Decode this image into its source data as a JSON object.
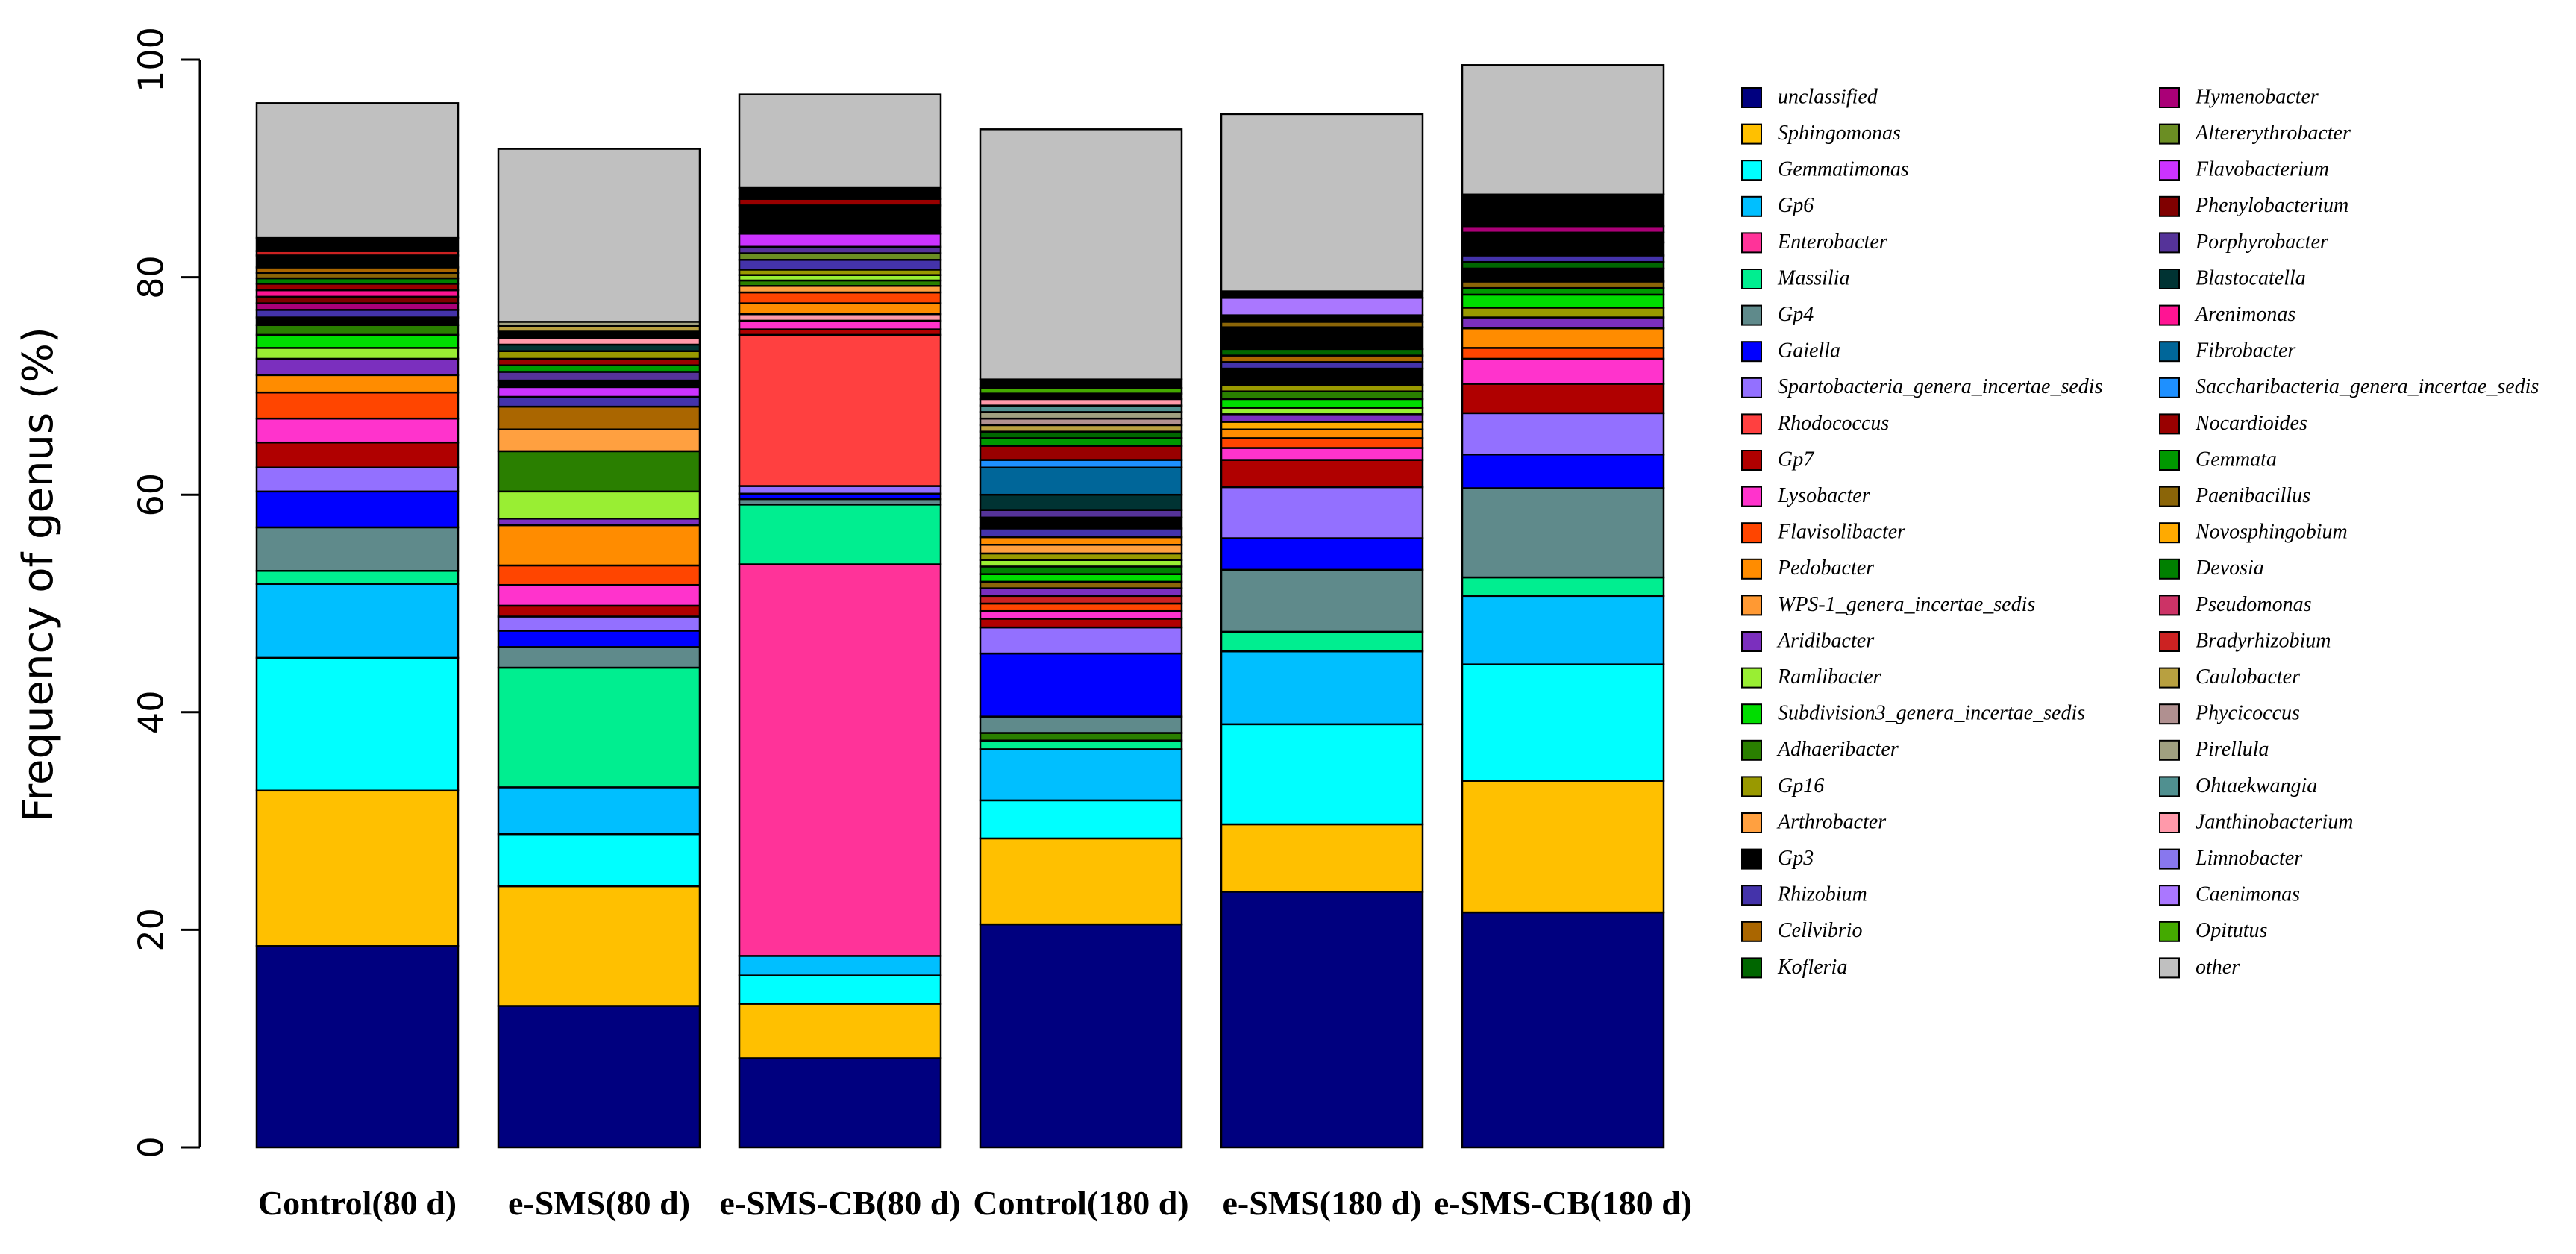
{
  "chart_data": {
    "type": "bar",
    "stacked": true,
    "title": "",
    "xlabel": "",
    "ylabel": "Frequency of genus (%)",
    "ylim": [
      0,
      100
    ],
    "yticks": [
      "0",
      "20",
      "40",
      "60",
      "80",
      "100"
    ],
    "categories": [
      "Control(80 d)",
      "e-SMS(80 d)",
      "e-SMS-CB(80 d)",
      "Control(180 d)",
      "e-SMS(180 d)",
      "e-SMS-CB(180 d)"
    ],
    "legend": [
      {
        "name": "unclassified",
        "color": "#00007f"
      },
      {
        "name": "Sphingomonas",
        "color": "#ffc000"
      },
      {
        "name": "Gemmatimonas",
        "color": "#00ffff"
      },
      {
        "name": "Gp6",
        "color": "#00bfff"
      },
      {
        "name": "Enterobacter",
        "color": "#ff3399"
      },
      {
        "name": "Massilia",
        "color": "#00ee90"
      },
      {
        "name": "Gp4",
        "color": "#5f8a8b"
      },
      {
        "name": "Gaiella",
        "color": "#0000ff"
      },
      {
        "name": "Spartobacteria_genera_incertae_sedis",
        "color": "#9370ff"
      },
      {
        "name": "Rhodococcus",
        "color": "#ff4040"
      },
      {
        "name": "Gp7",
        "color": "#b00000"
      },
      {
        "name": "Lysobacter",
        "color": "#ff33cc"
      },
      {
        "name": "Flavisolibacter",
        "color": "#ff4500"
      },
      {
        "name": "Pedobacter",
        "color": "#ff8c00"
      },
      {
        "name": "WPS-1_genera_incertae_sedis",
        "color": "#ff9933"
      },
      {
        "name": "Aridibacter",
        "color": "#7b2fbe"
      },
      {
        "name": "Ramlibacter",
        "color": "#99ee33"
      },
      {
        "name": "Subdivision3_genera_incertae_sedis",
        "color": "#00dd00"
      },
      {
        "name": "Adhaeribacter",
        "color": "#2a7f00"
      },
      {
        "name": "Gp16",
        "color": "#999900"
      },
      {
        "name": "Arthrobacter",
        "color": "#ffa040"
      },
      {
        "name": "Gp3",
        "color": "#000000"
      },
      {
        "name": "Rhizobium",
        "color": "#4433aa"
      },
      {
        "name": "Cellvibrio",
        "color": "#aa6600"
      },
      {
        "name": "Kofleria",
        "color": "#006600"
      },
      {
        "name": "Hymenobacter",
        "color": "#aa0077"
      },
      {
        "name": "Altererythrobacter",
        "color": "#6b8e23"
      },
      {
        "name": "Flavobacterium",
        "color": "#cc33ff"
      },
      {
        "name": "Phenylobacterium",
        "color": "#800000"
      },
      {
        "name": "Porphyrobacter",
        "color": "#553399"
      },
      {
        "name": "Blastocatella",
        "color": "#003333"
      },
      {
        "name": "Arenimonas",
        "color": "#ff1493"
      },
      {
        "name": "Fibrobacter",
        "color": "#006699"
      },
      {
        "name": "Saccharibacteria_genera_incertae_sedis",
        "color": "#1e90ff"
      },
      {
        "name": "Nocardioides",
        "color": "#990000"
      },
      {
        "name": "Gemmata",
        "color": "#009900"
      },
      {
        "name": "Paenibacillus",
        "color": "#8b6508"
      },
      {
        "name": "Novosphingobium",
        "color": "#ffaa00"
      },
      {
        "name": "Devosia",
        "color": "#008000"
      },
      {
        "name": "Pseudomonas",
        "color": "#cc3366"
      },
      {
        "name": "Bradyrhizobium",
        "color": "#cc2222"
      },
      {
        "name": "Caulobacter",
        "color": "#b8a040"
      },
      {
        "name": "Phycicoccus",
        "color": "#b09090"
      },
      {
        "name": "Pirellula",
        "color": "#a0a080"
      },
      {
        "name": "Ohtaekwangia",
        "color": "#509090"
      },
      {
        "name": "Janthinobacterium",
        "color": "#ff99aa"
      },
      {
        "name": "Limnobacter",
        "color": "#8877ee"
      },
      {
        "name": "Caenimonas",
        "color": "#aa77ff"
      },
      {
        "name": "Opitutus",
        "color": "#44aa00"
      },
      {
        "name": "other",
        "color": "#c0c0c0"
      }
    ],
    "stacks": [
      [
        {
          "name": "unclassified",
          "value": 18.5
        },
        {
          "name": "Sphingomonas",
          "value": 14.3
        },
        {
          "name": "Gemmatimonas",
          "value": 12.2
        },
        {
          "name": "Gp6",
          "value": 6.8
        },
        {
          "name": "Massilia",
          "value": 1.2
        },
        {
          "name": "Gp4",
          "value": 4.0
        },
        {
          "name": "Gaiella",
          "value": 3.3
        },
        {
          "name": "Spartobacteria_genera_incertae_sedis",
          "value": 2.2
        },
        {
          "name": "Gp7",
          "value": 2.3
        },
        {
          "name": "Lysobacter",
          "value": 2.2
        },
        {
          "name": "Flavisolibacter",
          "value": 2.4
        },
        {
          "name": "Pedobacter",
          "value": 1.6
        },
        {
          "name": "Aridibacter",
          "value": 1.5
        },
        {
          "name": "Ramlibacter",
          "value": 1.0
        },
        {
          "name": "Subdivision3_genera_incertae_sedis",
          "value": 1.2
        },
        {
          "name": "Adhaeribacter",
          "value": 0.9
        },
        {
          "name": "Gp3",
          "value": 0.7
        },
        {
          "name": "Rhizobium",
          "value": 0.7
        },
        {
          "name": "Hymenobacter",
          "value": 0.6
        },
        {
          "name": "Phenylobacterium",
          "value": 0.6
        },
        {
          "name": "Arenimonas",
          "value": 0.6
        },
        {
          "name": "Nocardioides",
          "value": 0.6
        },
        {
          "name": "Devosia",
          "value": 0.5
        },
        {
          "name": "Paenibacillus",
          "value": 0.5
        },
        {
          "name": "Cellvibrio",
          "value": 0.5
        },
        {
          "name": "Gp3",
          "value": 1.1
        },
        {
          "name": "Bradyrhizobium",
          "value": 0.4
        },
        {
          "name": "Gp3",
          "value": 1.2
        },
        {
          "name": "other",
          "value": 12.4
        }
      ],
      [
        {
          "name": "unclassified",
          "value": 13.0
        },
        {
          "name": "Sphingomonas",
          "value": 11.0
        },
        {
          "name": "Gemmatimonas",
          "value": 4.8
        },
        {
          "name": "Gp6",
          "value": 4.3
        },
        {
          "name": "Massilia",
          "value": 11.0
        },
        {
          "name": "Gp4",
          "value": 1.9
        },
        {
          "name": "Gaiella",
          "value": 1.5
        },
        {
          "name": "Spartobacteria_genera_incertae_sedis",
          "value": 1.3
        },
        {
          "name": "Gp7",
          "value": 1.0
        },
        {
          "name": "Lysobacter",
          "value": 1.9
        },
        {
          "name": "Flavisolibacter",
          "value": 1.8
        },
        {
          "name": "Pedobacter",
          "value": 3.7
        },
        {
          "name": "Aridibacter",
          "value": 0.6
        },
        {
          "name": "Ramlibacter",
          "value": 2.5
        },
        {
          "name": "Adhaeribacter",
          "value": 3.7
        },
        {
          "name": "Arthrobacter",
          "value": 2.0
        },
        {
          "name": "Cellvibrio",
          "value": 2.1
        },
        {
          "name": "Rhizobium",
          "value": 0.9
        },
        {
          "name": "Flavobacterium",
          "value": 0.9
        },
        {
          "name": "Gp3",
          "value": 0.6
        },
        {
          "name": "Porphyrobacter",
          "value": 0.8
        },
        {
          "name": "Gemmata",
          "value": 0.6
        },
        {
          "name": "Nocardioides",
          "value": 0.6
        },
        {
          "name": "Gp16",
          "value": 0.7
        },
        {
          "name": "Blastocatella",
          "value": 0.6
        },
        {
          "name": "Janthinobacterium",
          "value": 0.6
        },
        {
          "name": "Gp3",
          "value": 0.6
        },
        {
          "name": "Caulobacter",
          "value": 0.5
        },
        {
          "name": "Pirellula",
          "value": 0.4
        },
        {
          "name": "other",
          "value": 15.9
        }
      ],
      [
        {
          "name": "unclassified",
          "value": 8.2
        },
        {
          "name": "Sphingomonas",
          "value": 5.0
        },
        {
          "name": "Gemmatimonas",
          "value": 2.6
        },
        {
          "name": "Gp6",
          "value": 1.8
        },
        {
          "name": "Enterobacter",
          "value": 36.0
        },
        {
          "name": "Massilia",
          "value": 5.5
        },
        {
          "name": "Gp4",
          "value": 0.5
        },
        {
          "name": "Gaiella",
          "value": 0.5
        },
        {
          "name": "Spartobacteria_genera_incertae_sedis",
          "value": 0.7
        },
        {
          "name": "Rhodococcus",
          "value": 13.9
        },
        {
          "name": "Gp7",
          "value": 0.5
        },
        {
          "name": "Lysobacter",
          "value": 0.8
        },
        {
          "name": "Janthinobacterium",
          "value": 0.6
        },
        {
          "name": "Pedobacter",
          "value": 1.0
        },
        {
          "name": "Flavisolibacter",
          "value": 1.0
        },
        {
          "name": "Arthrobacter",
          "value": 0.6
        },
        {
          "name": "Adhaeribacter",
          "value": 0.5
        },
        {
          "name": "Ramlibacter",
          "value": 0.5
        },
        {
          "name": "Gp16",
          "value": 0.5
        },
        {
          "name": "Rhizobium",
          "value": 0.9
        },
        {
          "name": "Altererythrobacter",
          "value": 0.6
        },
        {
          "name": "Porphyrobacter",
          "value": 0.6
        },
        {
          "name": "Flavobacterium",
          "value": 1.2
        },
        {
          "name": "Gp3",
          "value": 0.6
        },
        {
          "name": "Gp3",
          "value": 2.0
        },
        {
          "name": "Nocardioides",
          "value": 0.6
        },
        {
          "name": "Gp3",
          "value": 1.0
        },
        {
          "name": "other",
          "value": 8.6
        }
      ],
      [
        {
          "name": "unclassified",
          "value": 20.5
        },
        {
          "name": "Sphingomonas",
          "value": 7.9
        },
        {
          "name": "Gemmatimonas",
          "value": 3.5
        },
        {
          "name": "Gp6",
          "value": 4.7
        },
        {
          "name": "Massilia",
          "value": 0.8
        },
        {
          "name": "Adhaeribacter",
          "value": 0.7
        },
        {
          "name": "Gp4",
          "value": 1.5
        },
        {
          "name": "Gaiella",
          "value": 5.8
        },
        {
          "name": "Spartobacteria_genera_incertae_sedis",
          "value": 2.4
        },
        {
          "name": "Gp7",
          "value": 0.8
        },
        {
          "name": "Lysobacter",
          "value": 0.7
        },
        {
          "name": "Flavisolibacter",
          "value": 0.7
        },
        {
          "name": "Bradyrhizobium",
          "value": 0.7
        },
        {
          "name": "Aridibacter",
          "value": 0.7
        },
        {
          "name": "Paenibacillus",
          "value": 0.6
        },
        {
          "name": "Subdivision3_genera_incertae_sedis",
          "value": 0.7
        },
        {
          "name": "Devosia",
          "value": 0.7
        },
        {
          "name": "Ramlibacter",
          "value": 0.6
        },
        {
          "name": "Gp16",
          "value": 0.6
        },
        {
          "name": "Arthrobacter",
          "value": 0.8
        },
        {
          "name": "Pedobacter",
          "value": 0.7
        },
        {
          "name": "Rhizobium",
          "value": 0.8
        },
        {
          "name": "Gp3",
          "value": 1.0
        },
        {
          "name": "Porphyrobacter",
          "value": 0.7
        },
        {
          "name": "Blastocatella",
          "value": 1.4
        },
        {
          "name": "Fibrobacter",
          "value": 2.5
        },
        {
          "name": "Saccharibacteria_genera_incertae_sedis",
          "value": 0.7
        },
        {
          "name": "Nocardioides",
          "value": 1.3
        },
        {
          "name": "Gemmata",
          "value": 0.7
        },
        {
          "name": "Kofleria",
          "value": 0.6
        },
        {
          "name": "Caulobacter",
          "value": 0.6
        },
        {
          "name": "Phycicoccus",
          "value": 0.6
        },
        {
          "name": "Pirellula",
          "value": 0.6
        },
        {
          "name": "Ohtaekwangia",
          "value": 0.6
        },
        {
          "name": "Janthinobacterium",
          "value": 0.6
        },
        {
          "name": "Gp3",
          "value": 0.5
        },
        {
          "name": "Opitutus",
          "value": 0.5
        },
        {
          "name": "Gp3",
          "value": 0.8
        },
        {
          "name": "other",
          "value": 23.0
        }
      ],
      [
        {
          "name": "unclassified",
          "value": 23.5
        },
        {
          "name": "Sphingomonas",
          "value": 6.2
        },
        {
          "name": "Gemmatimonas",
          "value": 9.2
        },
        {
          "name": "Gp6",
          "value": 6.7
        },
        {
          "name": "Massilia",
          "value": 1.8
        },
        {
          "name": "Gp4",
          "value": 5.7
        },
        {
          "name": "Gaiella",
          "value": 2.9
        },
        {
          "name": "Spartobacteria_genera_incertae_sedis",
          "value": 4.7
        },
        {
          "name": "Gp7",
          "value": 2.5
        },
        {
          "name": "Lysobacter",
          "value": 1.1
        },
        {
          "name": "Flavisolibacter",
          "value": 0.9
        },
        {
          "name": "Pedobacter",
          "value": 0.8
        },
        {
          "name": "Novosphingobium",
          "value": 0.7
        },
        {
          "name": "Aridibacter",
          "value": 0.7
        },
        {
          "name": "Ramlibacter",
          "value": 0.6
        },
        {
          "name": "Subdivision3_genera_incertae_sedis",
          "value": 0.8
        },
        {
          "name": "Adhaeribacter",
          "value": 0.7
        },
        {
          "name": "Gp16",
          "value": 0.6
        },
        {
          "name": "Gp3",
          "value": 1.5
        },
        {
          "name": "Rhizobium",
          "value": 0.6
        },
        {
          "name": "Cellvibrio",
          "value": 0.6
        },
        {
          "name": "Kofleria",
          "value": 0.6
        },
        {
          "name": "Gp3",
          "value": 2.0
        },
        {
          "name": "Paenibacillus",
          "value": 0.5
        },
        {
          "name": "Gp3",
          "value": 0.6
        },
        {
          "name": "Caenimonas",
          "value": 1.6
        },
        {
          "name": "Gp3",
          "value": 0.6
        },
        {
          "name": "other",
          "value": 16.3
        }
      ],
      [
        {
          "name": "unclassified",
          "value": 21.6
        },
        {
          "name": "Sphingomonas",
          "value": 12.1
        },
        {
          "name": "Gemmatimonas",
          "value": 10.7
        },
        {
          "name": "Gp6",
          "value": 6.3
        },
        {
          "name": "Massilia",
          "value": 1.7
        },
        {
          "name": "Gp4",
          "value": 8.2
        },
        {
          "name": "Gaiella",
          "value": 3.1
        },
        {
          "name": "Spartobacteria_genera_incertae_sedis",
          "value": 3.8
        },
        {
          "name": "Gp7",
          "value": 2.7
        },
        {
          "name": "Lysobacter",
          "value": 2.3
        },
        {
          "name": "Flavisolibacter",
          "value": 1.0
        },
        {
          "name": "Pedobacter",
          "value": 1.8
        },
        {
          "name": "Aridibacter",
          "value": 1.0
        },
        {
          "name": "Gp16",
          "value": 0.9
        },
        {
          "name": "Subdivision3_genera_incertae_sedis",
          "value": 1.2
        },
        {
          "name": "Gemmata",
          "value": 0.6
        },
        {
          "name": "Paenibacillus",
          "value": 0.6
        },
        {
          "name": "Gp3",
          "value": 1.2
        },
        {
          "name": "Kofleria",
          "value": 0.6
        },
        {
          "name": "Rhizobium",
          "value": 0.6
        },
        {
          "name": "Gp3",
          "value": 1.2
        },
        {
          "name": "Gp3",
          "value": 0.9
        },
        {
          "name": "Hymenobacter",
          "value": 0.6
        },
        {
          "name": "Gp3",
          "value": 2.9
        },
        {
          "name": "other",
          "value": 11.9
        }
      ]
    ]
  }
}
